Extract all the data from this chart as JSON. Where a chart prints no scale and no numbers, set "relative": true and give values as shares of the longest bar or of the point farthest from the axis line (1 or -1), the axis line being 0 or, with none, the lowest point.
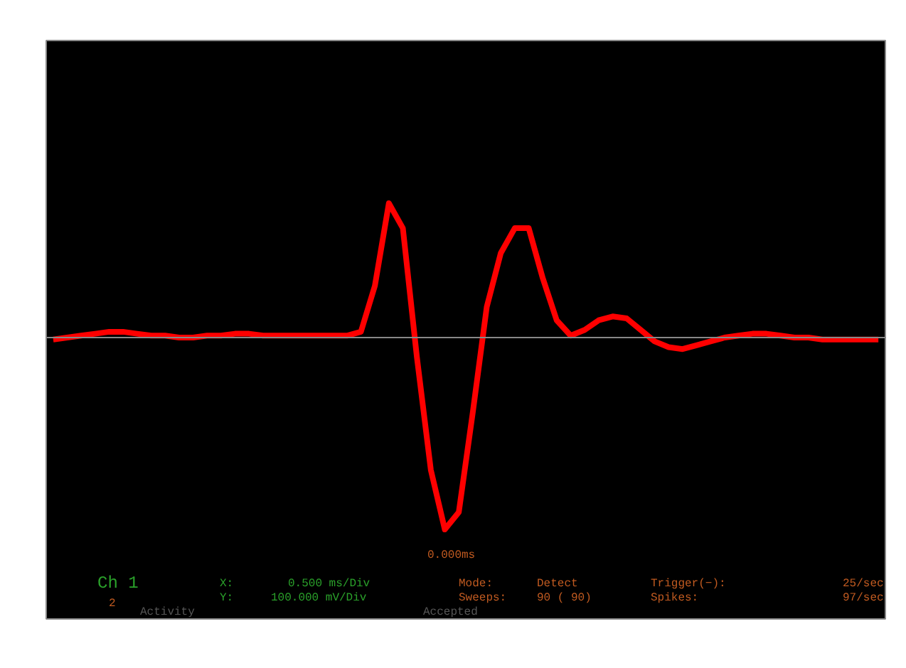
{
  "chart_data": {
    "type": "line",
    "relative": true,
    "color": "#ff0000",
    "categories": [
      null,
      null,
      null,
      null,
      null,
      null,
      null,
      null,
      null,
      null,
      null,
      null,
      null,
      null,
      null,
      null,
      null,
      null,
      null,
      null,
      null,
      null,
      null,
      null,
      null,
      null,
      null,
      null,
      null,
      null,
      null,
      null,
      null,
      null,
      null,
      null,
      null,
      null,
      null,
      null,
      null,
      null,
      null,
      null,
      null,
      null,
      null,
      null,
      null,
      null,
      null,
      null,
      null,
      null,
      null,
      null,
      null,
      null,
      null,
      null
    ],
    "values": [
      -0.01,
      0,
      0.01,
      0.02,
      0.03,
      0.03,
      0.02,
      0.01,
      0.01,
      0,
      0,
      0.01,
      0.01,
      0.02,
      0.02,
      0.01,
      0.01,
      0.01,
      0.01,
      0.01,
      0.01,
      0.01,
      0.03,
      0.27,
      0.7,
      0.57,
      -0.1,
      -0.69,
      -1,
      -0.91,
      -0.39,
      0.16,
      0.44,
      0.57,
      0.57,
      0.31,
      0.09,
      0.01,
      0.04,
      0.09,
      0.11,
      0.1,
      0.04,
      -0.02,
      -0.05,
      -0.06,
      -0.04,
      -0.02,
      0,
      0.01,
      0.02,
      0.02,
      0.01,
      0,
      0,
      -0.01,
      -0.01,
      -0.01,
      -0.01,
      -0.01
    ],
    "annotations": [
      "0.000ms",
      "Ch 1",
      "2",
      "X:",
      "0.500 ms/Div",
      "Y:",
      "100.000 mV/Div",
      "Mode:",
      "Detect",
      "Sweeps:",
      "90 ( 90)",
      "Trigger(−):",
      "25/sec",
      "Spikes:",
      "97/sec",
      "Activity",
      "Accepted"
    ]
  }
}
